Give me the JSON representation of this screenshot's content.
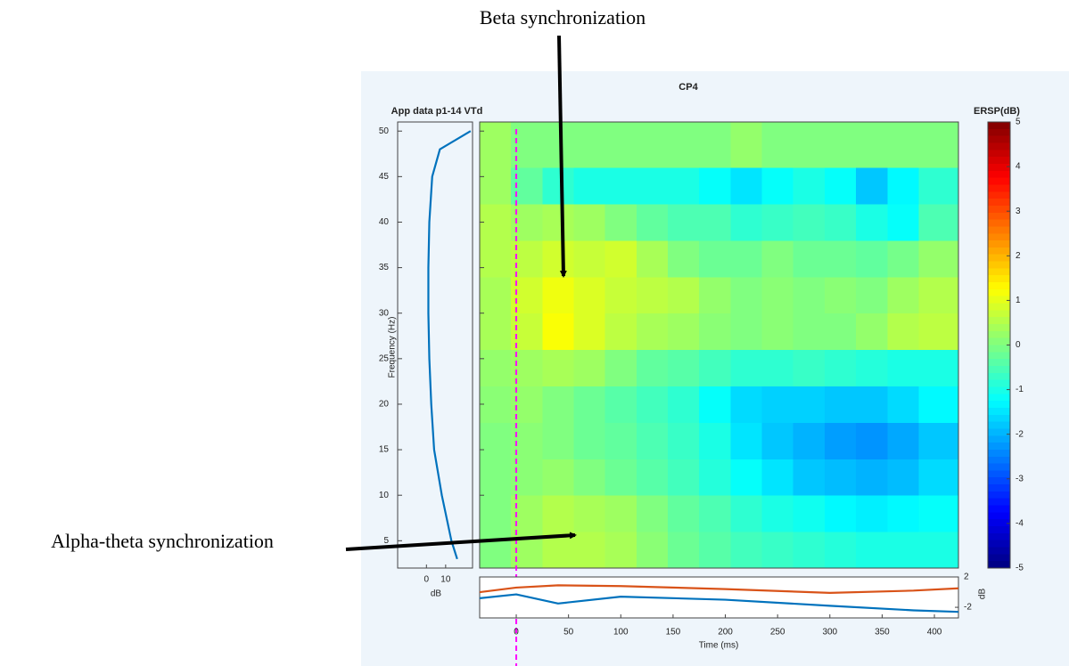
{
  "chart_data": [
    {
      "type": "heatmap",
      "title": "CP4",
      "subtitle": "App data p1-14 VTd",
      "ylabel": "Frequency (Hz)",
      "x": [
        -20,
        10,
        40,
        70,
        100,
        130,
        160,
        190,
        220,
        250,
        280,
        310,
        340,
        370,
        400
      ],
      "y": [
        4,
        8,
        12,
        16,
        20,
        24,
        28,
        32,
        36,
        40,
        44,
        48
      ],
      "z": [
        [
          0,
          0.3,
          0.5,
          0.5,
          0.4,
          0.1,
          -0.2,
          -0.4,
          -0.6,
          -0.7,
          -0.8,
          -0.9,
          -1,
          -1,
          -1
        ],
        [
          0,
          0.3,
          0.5,
          0.4,
          0.3,
          0,
          -0.3,
          -0.5,
          -0.8,
          -1,
          -1.1,
          -1.3,
          -1.4,
          -1.3,
          -1.2
        ],
        [
          0,
          0.1,
          0.2,
          0,
          -0.2,
          -0.4,
          -0.6,
          -0.9,
          -1.2,
          -1.5,
          -1.8,
          -1.9,
          -2,
          -1.9,
          -1.6
        ],
        [
          0,
          0.1,
          0,
          -0.2,
          -0.3,
          -0.5,
          -0.7,
          -1,
          -1.5,
          -1.8,
          -2,
          -2.2,
          -2.3,
          -2.1,
          -1.8
        ],
        [
          0.1,
          0.2,
          0,
          -0.2,
          -0.4,
          -0.6,
          -0.8,
          -1.2,
          -1.6,
          -1.7,
          -1.7,
          -1.8,
          -1.8,
          -1.6,
          -1.3
        ],
        [
          0.2,
          0.3,
          0.4,
          0.3,
          0,
          -0.3,
          -0.4,
          -0.6,
          -0.8,
          -0.8,
          -0.7,
          -0.8,
          -0.9,
          -1,
          -1
        ],
        [
          0.4,
          0.7,
          1.2,
          0.9,
          0.6,
          0.4,
          0.3,
          0.1,
          0,
          0.1,
          0,
          0,
          0.2,
          0.5,
          0.6
        ],
        [
          0.4,
          0.8,
          1.1,
          0.9,
          0.7,
          0.6,
          0.5,
          0.2,
          0,
          0.1,
          0,
          0.1,
          0,
          0.3,
          0.5
        ],
        [
          0.5,
          0.6,
          0.8,
          0.7,
          0.8,
          0.4,
          0,
          -0.2,
          -0.2,
          0,
          -0.2,
          -0.2,
          -0.3,
          -0.1,
          0.2
        ],
        [
          0.5,
          0.3,
          0.4,
          0.3,
          0,
          -0.3,
          -0.5,
          -0.5,
          -0.8,
          -0.7,
          -0.6,
          -0.7,
          -1,
          -1.2,
          -0.5
        ],
        [
          0.3,
          -0.3,
          -0.8,
          -1,
          -1,
          -1,
          -1,
          -1.2,
          -1.5,
          -1.2,
          -1,
          -1.2,
          -1.8,
          -1.3,
          -0.8
        ],
        [
          0.3,
          0,
          0,
          0,
          0,
          0,
          0,
          0,
          0.2,
          0,
          0,
          0,
          0,
          0,
          0
        ]
      ],
      "xlim": [
        -35,
        423
      ],
      "ylim": [
        2,
        51
      ],
      "yticks": [
        5,
        10,
        15,
        20,
        25,
        30,
        35,
        40,
        45,
        50
      ],
      "colormap": "jet",
      "clim": [
        -5,
        5
      ],
      "colorbar_label": "ERSP(dB)",
      "colorbar_ticks": [
        -5,
        -4,
        -3,
        -2,
        -1,
        0,
        1,
        2,
        3,
        4,
        5
      ],
      "vline": {
        "x": 0,
        "color": "#ff00ff"
      },
      "annotations": [
        "Beta synchronization",
        "Alpha-theta synchronization"
      ]
    },
    {
      "type": "line",
      "xlabel": "dB",
      "xlim": [
        -15,
        24
      ],
      "xticks": [
        0,
        10
      ],
      "ylim": [
        2,
        51
      ],
      "y": [
        3,
        5,
        10,
        15,
        20,
        25,
        30,
        35,
        40,
        45,
        48,
        50
      ],
      "series": [
        {
          "color": "#0072bd",
          "values": [
            16,
            13,
            8,
            4,
            2.5,
            1.5,
            1,
            1,
            1.5,
            3,
            7,
            23
          ]
        }
      ]
    },
    {
      "type": "line",
      "xlabel": "Time (ms)",
      "ylabel": "dB",
      "xlim": [
        -35,
        423
      ],
      "ylim": [
        -3.4,
        2
      ],
      "xticks": [
        0,
        50,
        100,
        150,
        200,
        250,
        300,
        350,
        400
      ],
      "yticks": [
        -2,
        2
      ],
      "x": [
        -35,
        0,
        40,
        100,
        200,
        300,
        380,
        423
      ],
      "series": [
        {
          "color": "#d95319",
          "values": [
            0,
            0.6,
            0.9,
            0.8,
            0.4,
            -0.1,
            0.2,
            0.5
          ]
        },
        {
          "color": "#0072bd",
          "values": [
            -0.8,
            -0.3,
            -1.5,
            -0.6,
            -1.0,
            -1.8,
            -2.4,
            -2.6
          ]
        }
      ]
    }
  ]
}
